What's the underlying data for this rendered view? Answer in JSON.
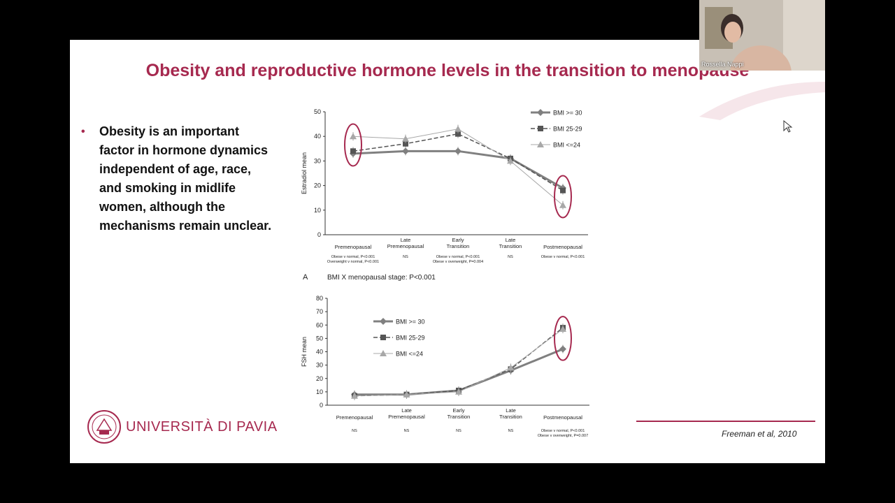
{
  "slide": {
    "title": "Obesity and reproductive hormone levels in the transition to menopause",
    "bullet": "Obesity is an important factor in hormone dynamics independent of age, race, and smoking in midlife women, although the mechanisms remain unclear.",
    "bullet_marker": "•",
    "logo_text": "UNIVERSITÀ DI PAVIA",
    "citation": "Freeman et al, 2010",
    "accent_color": "#a6294f"
  },
  "webcam": {
    "name": "Rossella Nappi"
  },
  "chart_data": [
    {
      "type": "line",
      "panel_label": "A",
      "ylabel": "Estradiol mean",
      "ylim": [
        0,
        50
      ],
      "yticks": [
        0,
        10,
        20,
        30,
        40,
        50
      ],
      "categories": [
        "Premenopausal",
        "Late Premenopausal",
        "Early Transition",
        "Late Transition",
        "Postmenopausal"
      ],
      "category_lines": [
        [
          "Premenopausal"
        ],
        [
          "Late",
          "Premenopausal"
        ],
        [
          "Early",
          "Transition"
        ],
        [
          "Late",
          "Transition"
        ],
        [
          "Postmenopausal"
        ]
      ],
      "stats": [
        [
          "Obese v normal, P<0.001",
          "Overweight v normal, P<0.001"
        ],
        [
          "NS"
        ],
        [
          "Obese v normal, P<0.001",
          "Obese v overweight, P=0.004"
        ],
        [
          "NS"
        ],
        [
          "Obese v normal, P<0.001"
        ]
      ],
      "footnote": "BMI X menopausal stage:  P<0.001",
      "legend_position": "top-right",
      "series": [
        {
          "name": "BMI >= 30",
          "values": [
            33,
            34,
            34,
            31,
            19
          ],
          "marker": "diamond",
          "dash": "solid",
          "color": "#808080"
        },
        {
          "name": "BMI 25-29",
          "values": [
            34,
            37,
            41,
            31,
            18
          ],
          "marker": "square",
          "dash": "dashed",
          "color": "#555555"
        },
        {
          "name": "BMI <=24",
          "values": [
            40,
            39,
            43,
            30,
            12
          ],
          "marker": "triangle",
          "dash": "thin",
          "color": "#a8a8a8"
        }
      ],
      "highlighted_categories": [
        "Premenopausal",
        "Postmenopausal"
      ]
    },
    {
      "type": "line",
      "ylabel": "FSH mean",
      "ylim": [
        0,
        80
      ],
      "yticks": [
        0,
        10,
        20,
        30,
        40,
        50,
        60,
        70,
        80
      ],
      "categories": [
        "Premenopausal",
        "Late Premenopausal",
        "Early Transition",
        "Late Transition",
        "Postmenopausal"
      ],
      "category_lines": [
        [
          "Premenopausal"
        ],
        [
          "Late",
          "Premenopausal"
        ],
        [
          "Early",
          "Transition"
        ],
        [
          "Late",
          "Transition"
        ],
        [
          "Postmenopausal"
        ]
      ],
      "stats": [
        [
          "NS"
        ],
        [
          "NS"
        ],
        [
          "NS"
        ],
        [
          "NS"
        ],
        [
          "Obese v normal, P<0.001",
          "Obese v overweight, P=0.007"
        ]
      ],
      "legend_position": "top-left",
      "series": [
        {
          "name": "BMI >= 30",
          "values": [
            8,
            8,
            11,
            26,
            42
          ],
          "marker": "diamond",
          "dash": "solid",
          "color": "#808080"
        },
        {
          "name": "BMI 25-29",
          "values": [
            7,
            8,
            11,
            27,
            58
          ],
          "marker": "square",
          "dash": "dashed",
          "color": "#555555"
        },
        {
          "name": "BMI <=24",
          "values": [
            7,
            8,
            10,
            28,
            57
          ],
          "marker": "triangle",
          "dash": "thin",
          "color": "#a8a8a8"
        }
      ],
      "highlighted_categories": [
        "Postmenopausal"
      ]
    }
  ]
}
